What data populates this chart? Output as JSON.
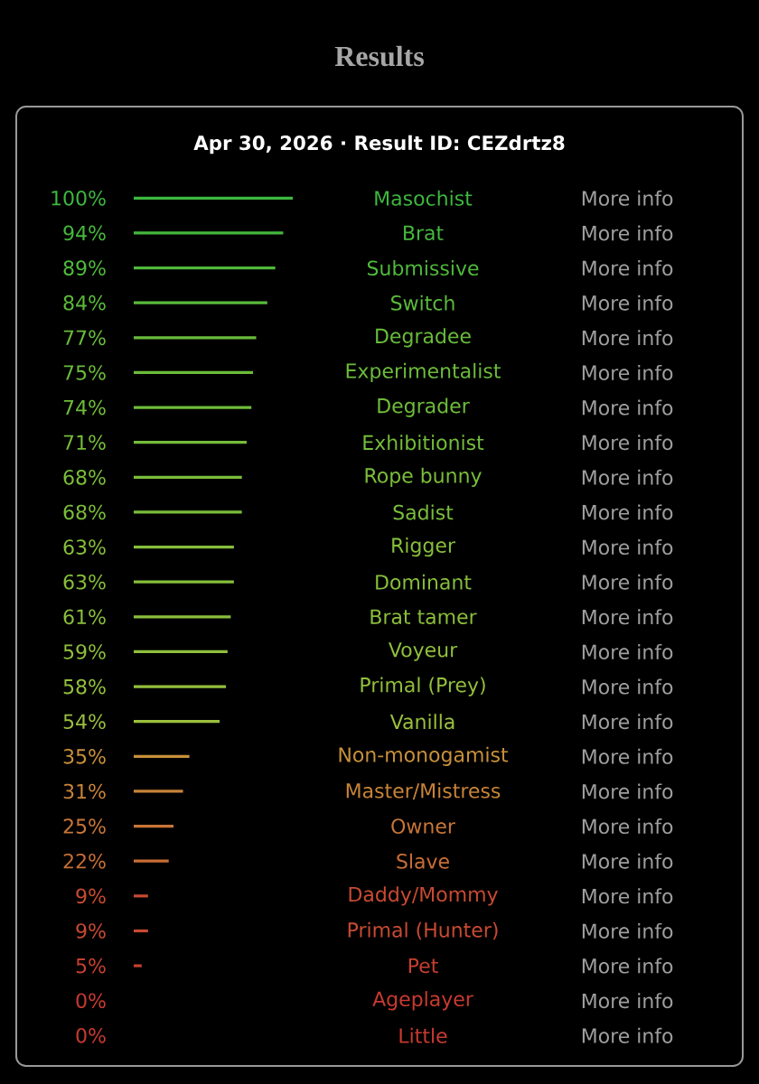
{
  "chart_data": {
    "type": "bar",
    "orientation": "horizontal",
    "title": "Results",
    "subtitle": "Apr 30, 2026  ·  Result ID:  CEZdrtz8",
    "categories": [
      "Masochist",
      "Brat",
      "Submissive",
      "Switch",
      "Degradee",
      "Experimentalist",
      "Degrader",
      "Exhibitionist",
      "Rope bunny",
      "Sadist",
      "Rigger",
      "Dominant",
      "Brat tamer",
      "Voyeur",
      "Primal (Prey)",
      "Vanilla",
      "Non-monogamist",
      "Master/Mistress",
      "Owner",
      "Slave",
      "Daddy/Mommy",
      "Primal (Hunter)",
      "Pet",
      "Ageplayer",
      "Little"
    ],
    "values": [
      100,
      94,
      89,
      84,
      77,
      75,
      74,
      71,
      68,
      68,
      63,
      63,
      61,
      59,
      58,
      54,
      35,
      31,
      25,
      22,
      9,
      9,
      5,
      0,
      0
    ],
    "value_labels": [
      "100%",
      "94%",
      "89%",
      "84%",
      "77%",
      "75%",
      "74%",
      "71%",
      "68%",
      "68%",
      "63%",
      "63%",
      "61%",
      "59%",
      "58%",
      "54%",
      "35%",
      "31%",
      "25%",
      "22%",
      "9%",
      "9%",
      "5%",
      "0%",
      "0%"
    ],
    "colors": [
      "#3db83f",
      "#45b83c",
      "#4fb93b",
      "#5aba3a",
      "#68bb3a",
      "#6bbb3a",
      "#6ebc3a",
      "#74bc3a",
      "#7abd3a",
      "#7abd3a",
      "#86be3a",
      "#86be3a",
      "#8abe3b",
      "#8fbf3c",
      "#92bf3c",
      "#9bc03d",
      "#c8903a",
      "#c88438",
      "#c87536",
      "#c86e35",
      "#c84a32",
      "#c84a32",
      "#c83f30",
      "#c83a30",
      "#c83a30"
    ],
    "annotations": [
      "More info",
      "More info",
      "More info",
      "More info",
      "More info",
      "More info",
      "More info",
      "More info",
      "More info",
      "More info",
      "More info",
      "More info",
      "More info",
      "More info",
      "More info",
      "More info",
      "More info",
      "More info",
      "More info",
      "More info",
      "More info",
      "More info",
      "More info",
      "More info",
      "More info"
    ]
  }
}
